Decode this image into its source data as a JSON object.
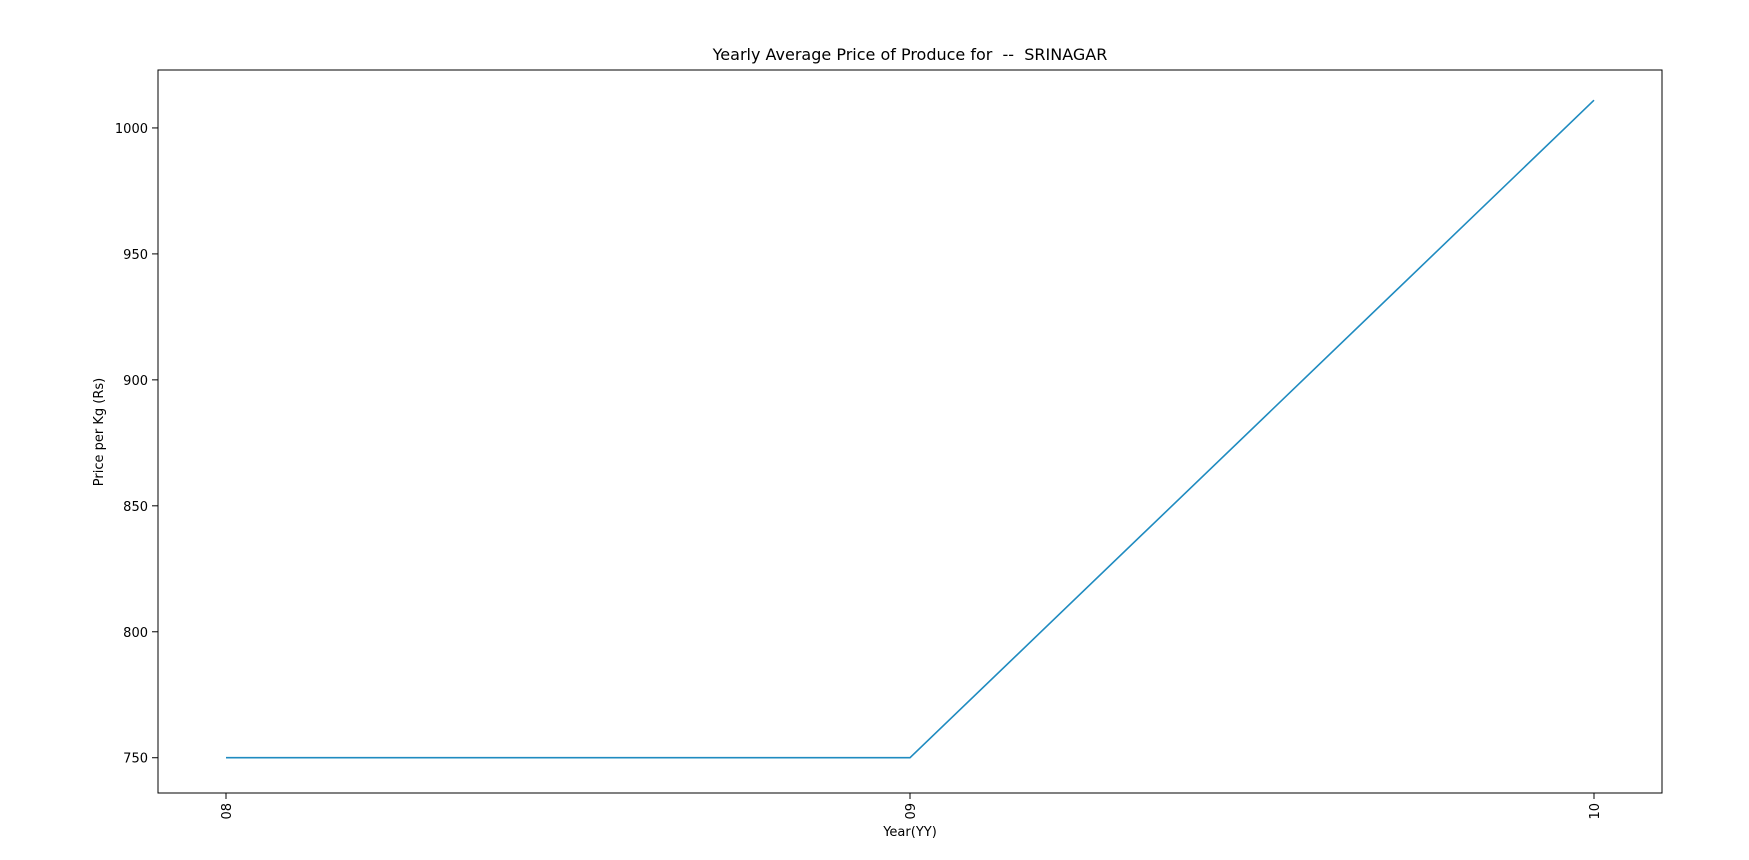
{
  "chart_data": {
    "type": "line",
    "title": "Yearly Average Price of Produce for  --  SRINAGAR",
    "xlabel": "Year(YY)",
    "ylabel": "Price per Kg (Rs)",
    "categories": [
      "08",
      "09",
      "10"
    ],
    "series": [
      {
        "values": [
          750,
          750,
          1011
        ],
        "color": "#1f8bc0"
      }
    ],
    "yticks": [
      750,
      800,
      850,
      900,
      950,
      1000
    ],
    "ylim": [
      736,
      1023
    ],
    "grid": false,
    "legend": "none"
  }
}
